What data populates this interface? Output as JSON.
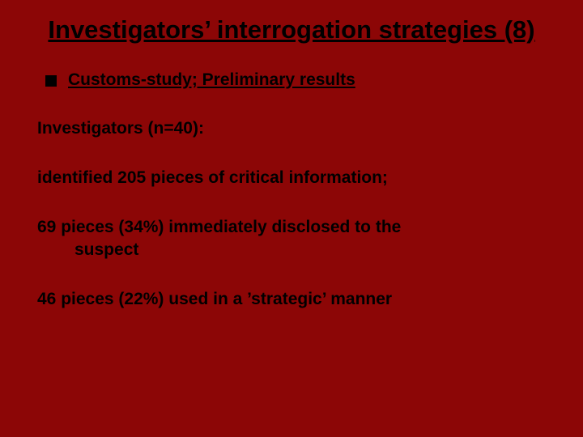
{
  "background_color": "#8c0606",
  "text_color": "#000000",
  "bullet_color": "#000000",
  "font_family": "Verdana",
  "title_fontsize": 31,
  "body_fontsize": 21,
  "title": "Investigators’ interrogation strategies (8)",
  "bullet": {
    "label": "Customs-study; Preliminary results"
  },
  "lines": {
    "l1": "Investigators (n=40):",
    "l2": "identified 205 pieces of critical information;",
    "l3a": "69 pieces (34%) immediately disclosed to the",
    "l3b": "suspect",
    "l4": "46 pieces (22%) used in a ’strategic’ manner"
  }
}
